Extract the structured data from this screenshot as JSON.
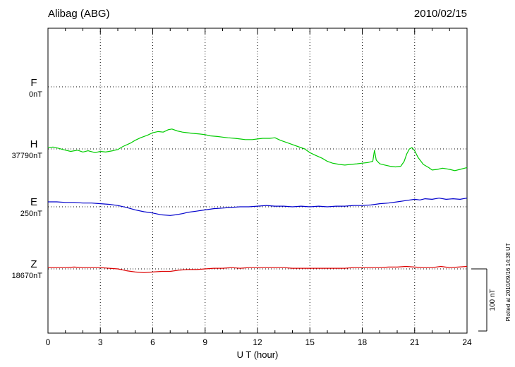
{
  "header": {
    "station": "Alibag (ABG)",
    "date": "2010/02/15"
  },
  "footnote": "Plotted at 2010/09/16 14:38 UT",
  "chart_data": {
    "type": "line",
    "title": "Alibag (ABG)",
    "date": "2010/02/15",
    "xlabel": "U T (hour)",
    "x_range_hours": [
      0,
      24
    ],
    "x_ticks": [
      0,
      3,
      6,
      9,
      12,
      15,
      18,
      21,
      24
    ],
    "grid": "dotted vertical lines at each 3-hour tick, dotted horizontal line at each component baseline",
    "legend_position": "left margin, one colored label per trace",
    "scale_bar_label": "100 nT",
    "scale_bar_nT": 100,
    "units": "nT",
    "points_format": "[hour UT, offset in nT from component baseline]",
    "series": [
      {
        "name": "F",
        "baseline_label": "0nT",
        "baseline_value_nT": 0,
        "color": "#FFAA00",
        "note": "no data plotted (flat baseline only)",
        "points": []
      },
      {
        "name": "H",
        "baseline_label": "37790nT",
        "baseline_value_nT": 37790,
        "color": "#00CC00",
        "points": [
          [
            0,
            2
          ],
          [
            0.3,
            3
          ],
          [
            0.6,
            1
          ],
          [
            1,
            -2
          ],
          [
            1.3,
            -4
          ],
          [
            1.7,
            -2
          ],
          [
            2,
            -5
          ],
          [
            2.3,
            -3
          ],
          [
            2.7,
            -6
          ],
          [
            3,
            -4
          ],
          [
            3.3,
            -5
          ],
          [
            3.7,
            -3
          ],
          [
            4,
            -1
          ],
          [
            4.3,
            4
          ],
          [
            4.7,
            9
          ],
          [
            5,
            14
          ],
          [
            5.3,
            18
          ],
          [
            5.7,
            22
          ],
          [
            6,
            26
          ],
          [
            6.3,
            28
          ],
          [
            6.6,
            27
          ],
          [
            6.9,
            31
          ],
          [
            7.1,
            32
          ],
          [
            7.4,
            29
          ],
          [
            7.7,
            27
          ],
          [
            8,
            26
          ],
          [
            8.3,
            25
          ],
          [
            8.7,
            24
          ],
          [
            9,
            23
          ],
          [
            9.3,
            21
          ],
          [
            9.7,
            20
          ],
          [
            10,
            19
          ],
          [
            10.3,
            18
          ],
          [
            10.7,
            17
          ],
          [
            11,
            16
          ],
          [
            11.3,
            15
          ],
          [
            11.7,
            15
          ],
          [
            12,
            16
          ],
          [
            12.3,
            17
          ],
          [
            12.7,
            17
          ],
          [
            13,
            18
          ],
          [
            13.3,
            14
          ],
          [
            13.7,
            10
          ],
          [
            14,
            7
          ],
          [
            14.3,
            4
          ],
          [
            14.7,
            0
          ],
          [
            15,
            -6
          ],
          [
            15.3,
            -10
          ],
          [
            15.7,
            -15
          ],
          [
            16,
            -20
          ],
          [
            16.3,
            -23
          ],
          [
            16.7,
            -25
          ],
          [
            17,
            -26
          ],
          [
            17.3,
            -25
          ],
          [
            17.7,
            -24
          ],
          [
            18,
            -23
          ],
          [
            18.3,
            -22
          ],
          [
            18.6,
            -20
          ],
          [
            18.7,
            -2
          ],
          [
            18.8,
            -18
          ],
          [
            19,
            -24
          ],
          [
            19.3,
            -26
          ],
          [
            19.6,
            -28
          ],
          [
            19.9,
            -29
          ],
          [
            20.2,
            -28
          ],
          [
            20.4,
            -20
          ],
          [
            20.55,
            -8
          ],
          [
            20.7,
            0
          ],
          [
            20.85,
            2
          ],
          [
            21,
            -3
          ],
          [
            21.2,
            -14
          ],
          [
            21.5,
            -25
          ],
          [
            21.8,
            -30
          ],
          [
            22,
            -34
          ],
          [
            22.3,
            -33
          ],
          [
            22.6,
            -31
          ],
          [
            23,
            -33
          ],
          [
            23.3,
            -35
          ],
          [
            23.6,
            -33
          ],
          [
            24,
            -30
          ]
        ]
      },
      {
        "name": "E",
        "baseline_label": "250nT",
        "baseline_value_nT": 250,
        "color": "#0000CC",
        "points": [
          [
            0,
            8
          ],
          [
            0.5,
            8
          ],
          [
            1,
            7
          ],
          [
            1.5,
            7
          ],
          [
            2,
            6
          ],
          [
            2.5,
            6
          ],
          [
            3,
            5
          ],
          [
            3.5,
            4
          ],
          [
            4,
            2
          ],
          [
            4.5,
            -1
          ],
          [
            5,
            -5
          ],
          [
            5.5,
            -8
          ],
          [
            6,
            -10
          ],
          [
            6.5,
            -13
          ],
          [
            7,
            -14
          ],
          [
            7.3,
            -13
          ],
          [
            7.7,
            -11
          ],
          [
            8,
            -9
          ],
          [
            8.5,
            -7
          ],
          [
            9,
            -5
          ],
          [
            9.5,
            -3
          ],
          [
            10,
            -2
          ],
          [
            10.5,
            -1
          ],
          [
            11,
            0
          ],
          [
            11.5,
            0
          ],
          [
            12,
            1
          ],
          [
            12.5,
            2
          ],
          [
            13,
            1
          ],
          [
            13.5,
            1
          ],
          [
            14,
            0
          ],
          [
            14.5,
            1
          ],
          [
            15,
            0
          ],
          [
            15.5,
            1
          ],
          [
            16,
            0
          ],
          [
            16.5,
            1
          ],
          [
            17,
            1
          ],
          [
            17.5,
            2
          ],
          [
            18,
            2
          ],
          [
            18.5,
            3
          ],
          [
            19,
            5
          ],
          [
            19.5,
            6
          ],
          [
            20,
            8
          ],
          [
            20.5,
            10
          ],
          [
            21,
            12
          ],
          [
            21.3,
            11
          ],
          [
            21.6,
            13
          ],
          [
            22,
            12
          ],
          [
            22.4,
            14
          ],
          [
            22.8,
            12
          ],
          [
            23.2,
            13
          ],
          [
            23.6,
            12
          ],
          [
            24,
            14
          ]
        ]
      },
      {
        "name": "Z",
        "baseline_label": "18670nT",
        "baseline_value_nT": 18670,
        "color": "#DD0000",
        "points": [
          [
            0,
            2
          ],
          [
            0.5,
            2
          ],
          [
            1,
            2
          ],
          [
            1.5,
            3
          ],
          [
            2,
            2
          ],
          [
            2.5,
            2
          ],
          [
            3,
            2
          ],
          [
            3.5,
            1
          ],
          [
            4,
            0
          ],
          [
            4.5,
            -3
          ],
          [
            5,
            -5
          ],
          [
            5.5,
            -6
          ],
          [
            6,
            -5
          ],
          [
            6.5,
            -4
          ],
          [
            7,
            -4
          ],
          [
            7.5,
            -2
          ],
          [
            8,
            -1
          ],
          [
            8.5,
            -1
          ],
          [
            9,
            0
          ],
          [
            9.5,
            1
          ],
          [
            10,
            1
          ],
          [
            10.5,
            2
          ],
          [
            11,
            1
          ],
          [
            11.5,
            2
          ],
          [
            12,
            2
          ],
          [
            12.5,
            2
          ],
          [
            13,
            2
          ],
          [
            13.5,
            2
          ],
          [
            14,
            1
          ],
          [
            14.5,
            1
          ],
          [
            15,
            1
          ],
          [
            15.5,
            1
          ],
          [
            16,
            1
          ],
          [
            16.5,
            1
          ],
          [
            17,
            1
          ],
          [
            17.5,
            2
          ],
          [
            18,
            2
          ],
          [
            18.5,
            2
          ],
          [
            19,
            2
          ],
          [
            19.5,
            3
          ],
          [
            20,
            3
          ],
          [
            20.5,
            4
          ],
          [
            21,
            3
          ],
          [
            21.5,
            2
          ],
          [
            22,
            2
          ],
          [
            22.5,
            4
          ],
          [
            23,
            2
          ],
          [
            23.5,
            3
          ],
          [
            24,
            4
          ]
        ]
      }
    ]
  }
}
